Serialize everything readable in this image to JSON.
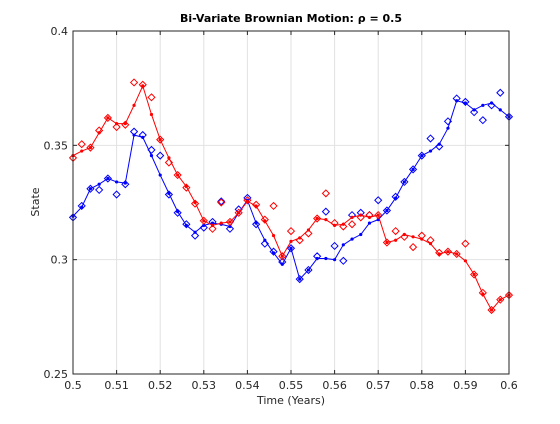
{
  "chart_data": {
    "type": "line",
    "title": "Bi-Variate Brownian Motion: ρ = 0.5",
    "xlabel": "Time (Years)",
    "ylabel": "State",
    "xlim": [
      0.5,
      0.6
    ],
    "ylim": [
      0.25,
      0.4
    ],
    "xticks": [
      "0.5",
      "0.51",
      "0.52",
      "0.53",
      "0.54",
      "0.55",
      "0.56",
      "0.57",
      "0.58",
      "0.59",
      "0.6"
    ],
    "yticks": [
      "0.25",
      "0.3",
      "0.35",
      "0.4"
    ],
    "grid": true,
    "colors": {
      "blue": "#0000ff",
      "red": "#ff0000"
    },
    "series": [
      {
        "color": "#0000ff",
        "x": [
          0.5,
          0.502,
          0.504,
          0.506,
          0.508,
          0.51,
          0.512,
          0.514,
          0.516,
          0.518,
          0.52,
          0.522,
          0.524,
          0.526,
          0.528,
          0.53,
          0.532,
          0.534,
          0.536,
          0.538,
          0.54,
          0.542,
          0.544,
          0.546,
          0.548,
          0.55,
          0.552,
          0.554,
          0.556,
          0.558,
          0.56,
          0.562,
          0.564,
          0.566,
          0.568,
          0.57,
          0.572,
          0.574,
          0.576,
          0.578,
          0.58,
          0.582,
          0.584,
          0.586,
          0.588,
          0.59,
          0.592,
          0.594,
          0.596,
          0.598,
          0.6
        ],
        "y": [
          0.319,
          0.323,
          0.331,
          0.333,
          0.3355,
          0.334,
          0.3335,
          0.3545,
          0.3535,
          0.3455,
          0.337,
          0.329,
          0.321,
          0.315,
          0.312,
          0.315,
          0.316,
          0.3155,
          0.3145,
          0.3205,
          0.326,
          0.316,
          0.3085,
          0.303,
          0.298,
          0.305,
          0.2915,
          0.2955,
          0.3005,
          0.3005,
          0.3,
          0.3065,
          0.309,
          0.311,
          0.316,
          0.3175,
          0.3215,
          0.327,
          0.334,
          0.3395,
          0.3455,
          0.3475,
          0.3505,
          0.3575,
          0.3695,
          0.3685,
          0.3655,
          0.3675,
          0.3685,
          0.3655,
          0.3625
        ],
        "markers": [
          [
            0.5,
            0.3185
          ],
          [
            0.502,
            0.3235
          ],
          [
            0.504,
            0.331
          ],
          [
            0.506,
            0.3305
          ],
          [
            0.508,
            0.3355
          ],
          [
            0.51,
            0.3285
          ],
          [
            0.512,
            0.333
          ],
          [
            0.514,
            0.356
          ],
          [
            0.516,
            0.3545
          ],
          [
            0.518,
            0.348
          ],
          [
            0.52,
            0.3455
          ],
          [
            0.522,
            0.3285
          ],
          [
            0.524,
            0.3205
          ],
          [
            0.526,
            0.3155
          ],
          [
            0.528,
            0.3105
          ],
          [
            0.53,
            0.314
          ],
          [
            0.532,
            0.3165
          ],
          [
            0.534,
            0.3255
          ],
          [
            0.536,
            0.3135
          ],
          [
            0.538,
            0.322
          ],
          [
            0.54,
            0.327
          ],
          [
            0.542,
            0.3155
          ],
          [
            0.544,
            0.307
          ],
          [
            0.546,
            0.3035
          ],
          [
            0.548,
            0.299
          ],
          [
            0.55,
            0.305
          ],
          [
            0.552,
            0.2915
          ],
          [
            0.554,
            0.2955
          ],
          [
            0.556,
            0.3015
          ],
          [
            0.558,
            0.321
          ],
          [
            0.56,
            0.306
          ],
          [
            0.562,
            0.2995
          ],
          [
            0.564,
            0.3195
          ],
          [
            0.566,
            0.3205
          ],
          [
            0.568,
            0.3195
          ],
          [
            0.57,
            0.326
          ],
          [
            0.572,
            0.3215
          ],
          [
            0.574,
            0.3275
          ],
          [
            0.576,
            0.334
          ],
          [
            0.578,
            0.3395
          ],
          [
            0.58,
            0.3455
          ],
          [
            0.582,
            0.353
          ],
          [
            0.584,
            0.3495
          ],
          [
            0.586,
            0.3605
          ],
          [
            0.588,
            0.3705
          ],
          [
            0.59,
            0.369
          ],
          [
            0.592,
            0.3645
          ],
          [
            0.594,
            0.361
          ],
          [
            0.596,
            0.3675
          ],
          [
            0.598,
            0.373
          ],
          [
            0.6,
            0.3625
          ]
        ]
      },
      {
        "color": "#ff0000",
        "x": [
          0.5,
          0.502,
          0.504,
          0.506,
          0.508,
          0.51,
          0.512,
          0.514,
          0.516,
          0.518,
          0.52,
          0.522,
          0.524,
          0.526,
          0.528,
          0.53,
          0.532,
          0.534,
          0.536,
          0.538,
          0.54,
          0.542,
          0.544,
          0.546,
          0.548,
          0.55,
          0.552,
          0.554,
          0.556,
          0.558,
          0.56,
          0.562,
          0.564,
          0.566,
          0.568,
          0.57,
          0.572,
          0.574,
          0.576,
          0.578,
          0.58,
          0.582,
          0.584,
          0.586,
          0.588,
          0.59,
          0.592,
          0.594,
          0.596,
          0.598,
          0.6
        ],
        "y": [
          0.3455,
          0.3475,
          0.349,
          0.3555,
          0.362,
          0.3595,
          0.3595,
          0.3675,
          0.376,
          0.3635,
          0.3525,
          0.3445,
          0.337,
          0.332,
          0.325,
          0.317,
          0.315,
          0.316,
          0.3165,
          0.3205,
          0.3255,
          0.3235,
          0.317,
          0.3105,
          0.3015,
          0.308,
          0.3095,
          0.313,
          0.318,
          0.3175,
          0.315,
          0.3155,
          0.3185,
          0.3195,
          0.3185,
          0.3195,
          0.3075,
          0.3085,
          0.311,
          0.31,
          0.309,
          0.307,
          0.3025,
          0.3035,
          0.3025,
          0.2995,
          0.2935,
          0.285,
          0.278,
          0.2825,
          0.2845
        ],
        "markers": [
          [
            0.5,
            0.3445
          ],
          [
            0.502,
            0.3505
          ],
          [
            0.504,
            0.349
          ],
          [
            0.506,
            0.3565
          ],
          [
            0.508,
            0.362
          ],
          [
            0.51,
            0.358
          ],
          [
            0.512,
            0.359
          ],
          [
            0.514,
            0.3775
          ],
          [
            0.516,
            0.3765
          ],
          [
            0.518,
            0.371
          ],
          [
            0.52,
            0.3525
          ],
          [
            0.522,
            0.3425
          ],
          [
            0.524,
            0.337
          ],
          [
            0.526,
            0.3315
          ],
          [
            0.528,
            0.3245
          ],
          [
            0.53,
            0.317
          ],
          [
            0.532,
            0.3135
          ],
          [
            0.534,
            0.325
          ],
          [
            0.536,
            0.3165
          ],
          [
            0.538,
            0.3205
          ],
          [
            0.54,
            0.326
          ],
          [
            0.542,
            0.324
          ],
          [
            0.544,
            0.3175
          ],
          [
            0.546,
            0.3235
          ],
          [
            0.548,
            0.3015
          ],
          [
            0.55,
            0.3125
          ],
          [
            0.552,
            0.3085
          ],
          [
            0.554,
            0.3115
          ],
          [
            0.556,
            0.318
          ],
          [
            0.558,
            0.329
          ],
          [
            0.56,
            0.316
          ],
          [
            0.562,
            0.3145
          ],
          [
            0.564,
            0.3155
          ],
          [
            0.566,
            0.3185
          ],
          [
            0.568,
            0.3195
          ],
          [
            0.57,
            0.3195
          ],
          [
            0.572,
            0.3075
          ],
          [
            0.574,
            0.3125
          ],
          [
            0.576,
            0.31
          ],
          [
            0.578,
            0.3055
          ],
          [
            0.58,
            0.3105
          ],
          [
            0.582,
            0.3085
          ],
          [
            0.584,
            0.303
          ],
          [
            0.586,
            0.3035
          ],
          [
            0.588,
            0.3025
          ],
          [
            0.59,
            0.307
          ],
          [
            0.592,
            0.2935
          ],
          [
            0.594,
            0.2855
          ],
          [
            0.596,
            0.278
          ],
          [
            0.598,
            0.2825
          ],
          [
            0.6,
            0.2845
          ]
        ]
      }
    ]
  }
}
